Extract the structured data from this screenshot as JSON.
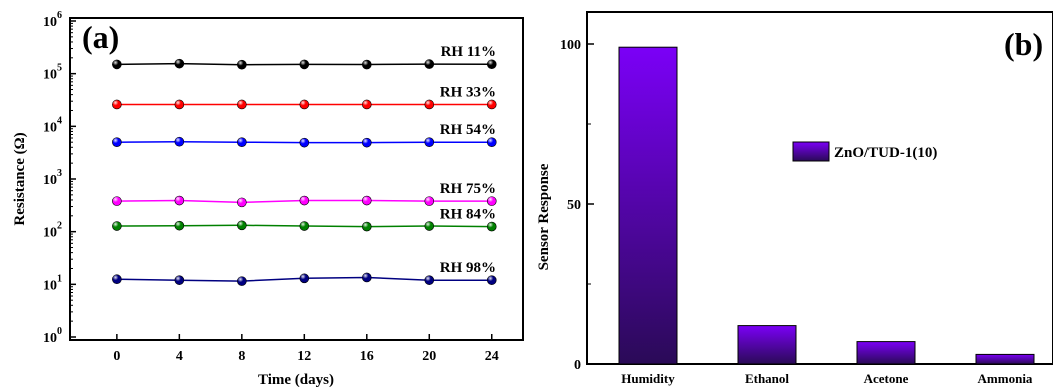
{
  "chart_data": [
    {
      "panel_label": "(a)",
      "type": "line",
      "x": [
        0,
        4,
        8,
        12,
        16,
        20,
        24
      ],
      "xlabel": "Time (days)",
      "ylabel": "Resistance (Ω)",
      "ylog": true,
      "ylim": [
        1,
        1000000
      ],
      "xlim": [
        -3,
        26
      ],
      "x_ticks": [
        "0",
        "4",
        "8",
        "12",
        "16",
        "20",
        "24"
      ],
      "y_ticks": [
        {
          "base": "10",
          "exp": "0"
        },
        {
          "base": "10",
          "exp": "1"
        },
        {
          "base": "10",
          "exp": "2"
        },
        {
          "base": "10",
          "exp": "3"
        },
        {
          "base": "10",
          "exp": "4"
        },
        {
          "base": "10",
          "exp": "5"
        },
        {
          "base": "10",
          "exp": "6"
        }
      ],
      "series": [
        {
          "name": "RH 11%",
          "color": "#000000",
          "values": [
            150000,
            155000,
            148000,
            150000,
            149000,
            152000,
            151000
          ]
        },
        {
          "name": "RH 33%",
          "color": "#ff0000",
          "values": [
            26000,
            26000,
            26000,
            26000,
            26000,
            26000,
            26000
          ]
        },
        {
          "name": "RH 54%",
          "color": "#0000ff",
          "values": [
            5000,
            5100,
            5000,
            4900,
            4900,
            5000,
            5000
          ]
        },
        {
          "name": "RH 75%",
          "color": "#ff00ff",
          "values": [
            380,
            390,
            360,
            390,
            390,
            380,
            380
          ]
        },
        {
          "name": "RH 84%",
          "color": "#008000",
          "values": [
            128,
            130,
            132,
            128,
            125,
            128,
            125
          ]
        },
        {
          "name": "RH 98%",
          "color": "#000080",
          "values": [
            12.5,
            12,
            11.5,
            13,
            13.5,
            12,
            12
          ]
        }
      ]
    },
    {
      "panel_label": "(b)",
      "type": "bar",
      "categories": [
        "Humidity",
        "Ethanol",
        "Acetone",
        "Ammonia"
      ],
      "values": [
        99,
        12,
        7,
        3
      ],
      "ylabel": "Sensor Response",
      "ylim": [
        0,
        110
      ],
      "y_ticks": [
        "0",
        "50",
        "100"
      ],
      "legend": {
        "label": "ZnO/TUD-1(10)",
        "placement": "center"
      },
      "colors": {
        "bar_top": "#7b00f7",
        "bar_bottom": "#2a0a57"
      }
    }
  ]
}
